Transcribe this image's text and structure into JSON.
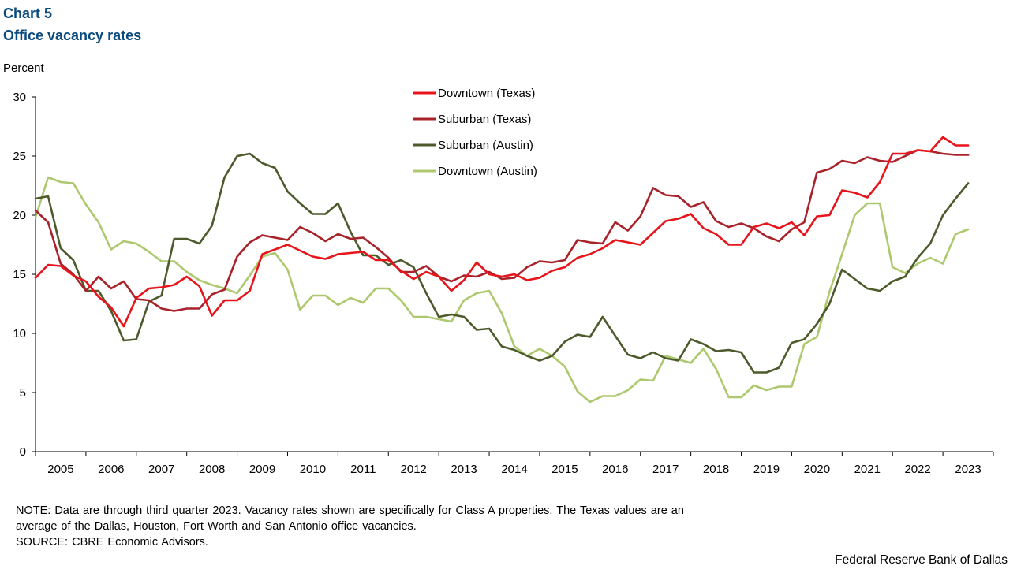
{
  "header": {
    "chart_number": "Chart 5",
    "title": "Office vacancy rates",
    "y_unit": "Percent"
  },
  "note": {
    "line1": "NOTE:  Data are through third quarter 2023. Vacancy rates shown are specifically for Class A properties. The Texas values are an",
    "line2": "average of the Dallas, Houston, Fort Worth and San Antonio office vacancies.",
    "line3": "SOURCE:  CBRE Economic Advisors."
  },
  "credit": "Federal Reserve Bank of Dallas",
  "colors": {
    "downtown_texas": "#e8141b",
    "suburban_texas": "#a8222a",
    "suburban_austin": "#4d5a2c",
    "downtown_austin": "#adc86e",
    "title": "#0b4a7d"
  },
  "chart_data": {
    "type": "line",
    "title": "Office vacancy rates",
    "xlabel": "",
    "ylabel": "Percent",
    "ylim": [
      0,
      30
    ],
    "yticks": [
      0,
      5,
      10,
      15,
      20,
      25,
      30
    ],
    "year_labels": [
      "2005",
      "2006",
      "2007",
      "2008",
      "2009",
      "2010",
      "2011",
      "2012",
      "2013",
      "2014",
      "2015",
      "2016",
      "2017",
      "2018",
      "2019",
      "2020",
      "2021",
      "2022",
      "2023"
    ],
    "x_start": 2004.75,
    "x_step": 0.25,
    "x_range": [
      2004.75,
      2023.75
    ],
    "legend_position": "top-center",
    "grid": false,
    "series": [
      {
        "name": "Downtown (Texas)",
        "color": "#e8141b",
        "values": [
          14.7,
          15.8,
          15.7,
          14.9,
          14.4,
          13.1,
          12.2,
          10.6,
          13.0,
          13.8,
          13.9,
          14.1,
          14.8,
          14.0,
          11.5,
          12.8,
          12.8,
          13.6,
          16.7,
          17.1,
          17.5,
          17.0,
          16.5,
          16.3,
          16.7,
          16.8,
          16.9,
          16.2,
          16.2,
          15.3,
          14.6,
          15.2,
          14.8,
          13.6,
          14.5,
          16.0,
          15.0,
          14.8,
          15.0,
          14.5,
          14.7,
          15.3,
          15.6,
          16.4,
          16.7,
          17.2,
          17.9,
          17.7,
          17.5,
          18.5,
          19.5,
          19.7,
          20.1,
          18.9,
          18.4,
          17.5,
          17.5,
          19.0,
          19.3,
          18.9,
          19.4,
          18.3,
          19.9,
          20.0,
          22.1,
          21.9,
          21.5,
          22.8,
          25.2,
          25.2,
          25.5,
          25.4,
          26.6,
          25.9,
          25.9
        ]
      },
      {
        "name": "Suburban (Texas)",
        "color": "#a8222a",
        "values": [
          20.4,
          19.4,
          15.9,
          15.0,
          13.6,
          14.8,
          13.8,
          14.4,
          12.9,
          12.8,
          12.1,
          11.9,
          12.1,
          12.1,
          13.3,
          13.7,
          16.5,
          17.7,
          18.3,
          18.1,
          17.9,
          19.0,
          18.5,
          17.8,
          18.4,
          18.0,
          18.1,
          17.3,
          16.4,
          15.2,
          15.2,
          15.7,
          14.8,
          14.4,
          14.9,
          14.8,
          15.2,
          14.6,
          14.7,
          15.6,
          16.1,
          16.0,
          16.2,
          17.9,
          17.7,
          17.6,
          19.4,
          18.7,
          19.9,
          22.3,
          21.7,
          21.6,
          20.7,
          21.1,
          19.5,
          19.0,
          19.3,
          18.9,
          18.2,
          17.8,
          18.8,
          19.4,
          23.6,
          23.9,
          24.6,
          24.4,
          24.9,
          24.6,
          24.5,
          25.0,
          25.5,
          25.4,
          25.2,
          25.1,
          25.1
        ]
      },
      {
        "name": "Suburban (Austin)",
        "color": "#4d5a2c",
        "values": [
          21.4,
          21.6,
          17.2,
          16.2,
          13.6,
          13.6,
          11.9,
          9.4,
          9.5,
          12.7,
          13.2,
          18.0,
          18.0,
          17.6,
          19.1,
          23.2,
          25.0,
          25.2,
          24.4,
          24.0,
          22.0,
          21.0,
          20.1,
          20.1,
          21.0,
          18.6,
          16.6,
          16.6,
          15.8,
          16.2,
          15.6,
          13.4,
          11.4,
          11.6,
          11.4,
          10.3,
          10.4,
          8.9,
          8.6,
          8.1,
          7.7,
          8.1,
          9.3,
          9.9,
          9.7,
          11.4,
          9.8,
          8.2,
          7.9,
          8.4,
          7.9,
          7.7,
          9.5,
          9.1,
          8.5,
          8.6,
          8.4,
          6.7,
          6.7,
          7.1,
          9.2,
          9.5,
          10.8,
          12.5,
          15.4,
          14.6,
          13.8,
          13.6,
          14.4,
          14.8,
          16.4,
          17.6,
          20.0,
          21.4,
          22.7
        ]
      },
      {
        "name": "Downtown (Austin)",
        "color": "#adc86e",
        "values": [
          19.8,
          23.2,
          22.8,
          22.7,
          20.9,
          19.4,
          17.1,
          17.8,
          17.6,
          16.9,
          16.1,
          16.1,
          15.2,
          14.5,
          14.1,
          13.8,
          13.4,
          14.9,
          16.5,
          16.8,
          15.4,
          12.0,
          13.2,
          13.2,
          12.4,
          13.0,
          12.6,
          13.8,
          13.8,
          12.8,
          11.4,
          11.4,
          11.2,
          11.0,
          12.8,
          13.4,
          13.6,
          11.7,
          8.9,
          8.1,
          8.7,
          8.1,
          7.2,
          5.1,
          4.2,
          4.7,
          4.7,
          5.2,
          6.1,
          6.0,
          8.1,
          7.8,
          7.5,
          8.7,
          7.0,
          4.6,
          4.6,
          5.6,
          5.2,
          5.5,
          5.5,
          9.1,
          9.7,
          13.5,
          16.7,
          20.0,
          21.0,
          21.0,
          15.6,
          15.1,
          15.9,
          16.4,
          15.9,
          18.4,
          18.8
        ]
      }
    ]
  }
}
